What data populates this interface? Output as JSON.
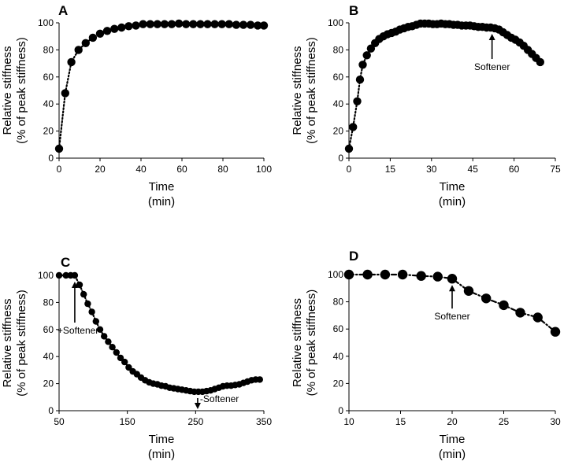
{
  "chart_data": [
    {
      "type": "scatter",
      "panel_label": "A",
      "xlabel": "Time",
      "xunit": "(min)",
      "ylabel": "Relative stiffness",
      "yunit": "(% of peak stiffness)",
      "xlim": [
        0,
        100
      ],
      "ylim": [
        0,
        100
      ],
      "xticks": [
        0,
        20,
        40,
        60,
        80,
        100
      ],
      "yticks": [
        0,
        20,
        40,
        60,
        80,
        100
      ],
      "grid": false,
      "line_style": "dotted",
      "series": [
        {
          "x": [
            0,
            3,
            6,
            9.5,
            13,
            16.5,
            20,
            23.5,
            27,
            30.5,
            34,
            37.5,
            41,
            44.5,
            48,
            51.5,
            55,
            58.5,
            62,
            65.5,
            69,
            72.5,
            76,
            79.5,
            83,
            86.5,
            90,
            93.5,
            97,
            100
          ],
          "y": [
            7,
            48,
            71,
            80,
            85,
            89,
            92,
            94,
            95.5,
            96.5,
            97.5,
            98,
            99,
            99,
            99,
            99,
            99,
            99.5,
            99,
            99,
            99,
            99,
            99,
            99,
            99,
            98.5,
            98.5,
            98.5,
            98,
            98
          ]
        }
      ],
      "annotations": []
    },
    {
      "type": "scatter",
      "panel_label": "B",
      "xlabel": "Time",
      "xunit": "(min)",
      "ylabel": "Relative stiffness",
      "yunit": "(% of peak stiffness)",
      "xlim": [
        0,
        75
      ],
      "ylim": [
        0,
        100
      ],
      "xticks": [
        0,
        15,
        30,
        45,
        60,
        75
      ],
      "yticks": [
        0,
        20,
        40,
        60,
        80,
        100
      ],
      "grid": false,
      "line_style": "dotted",
      "series": [
        {
          "x": [
            0,
            1.5,
            3,
            4,
            5,
            6.5,
            8,
            9.5,
            11,
            12.5,
            14,
            15.5,
            17,
            18.5,
            20,
            21.5,
            23,
            24.5,
            26,
            27.5,
            29,
            30.5,
            32,
            33.5,
            35,
            36.5,
            38,
            39.5,
            41,
            42.5,
            44,
            45.5,
            47,
            48.5,
            50,
            51.5,
            53,
            54.5,
            56,
            57.5,
            59,
            60.5,
            62,
            63.5,
            65,
            66.5,
            68,
            69.5
          ],
          "y": [
            7,
            23,
            42,
            58,
            69,
            76,
            81,
            85,
            88,
            90,
            91.5,
            92.5,
            93.5,
            95,
            96,
            97,
            97.5,
            98.5,
            99.5,
            99.5,
            99.5,
            99,
            99,
            99.5,
            99,
            99,
            98.5,
            98.5,
            98,
            98,
            98,
            97.5,
            97,
            97,
            96.5,
            96.5,
            96,
            95,
            93,
            91,
            89,
            87.5,
            85.5,
            83,
            80,
            77,
            74,
            71
          ]
        }
      ],
      "annotations": [
        {
          "text": "Softener",
          "x": 52,
          "arrow": "up"
        }
      ]
    },
    {
      "type": "scatter",
      "panel_label": "C",
      "xlabel": "Time",
      "xunit": "(min)",
      "ylabel": "Relative stiffness",
      "yunit": "(% of peak stiffness)",
      "xlim": [
        50,
        350
      ],
      "ylim": [
        0,
        100
      ],
      "xticks": [
        50,
        150,
        250,
        350
      ],
      "yticks": [
        0,
        20,
        40,
        60,
        80,
        100
      ],
      "grid": false,
      "line_style": "dotted",
      "series": [
        {
          "x": [
            50,
            60,
            67,
            73,
            80,
            86,
            92,
            98,
            104,
            110,
            116,
            122,
            128,
            134,
            140,
            146,
            152,
            158,
            164,
            170,
            176,
            182,
            188,
            194,
            200,
            206,
            212,
            218,
            224,
            230,
            236,
            242,
            248,
            254,
            260,
            266,
            272,
            278,
            284,
            290,
            296,
            302,
            308,
            314,
            320,
            326,
            332,
            338,
            344
          ],
          "y": [
            100,
            100,
            100,
            100,
            93,
            86,
            79,
            73,
            66,
            60,
            55,
            51,
            47,
            43,
            39,
            36,
            32,
            29,
            27,
            24.5,
            22.5,
            21,
            20,
            19.5,
            18.5,
            18,
            17,
            16.5,
            16,
            15.5,
            15,
            14.5,
            14,
            14,
            14,
            14.5,
            15,
            16,
            17,
            18,
            18.5,
            18.5,
            19,
            19.5,
            20.5,
            21.5,
            22.5,
            23,
            23
          ]
        }
      ],
      "annotations": [
        {
          "text": "+Softener",
          "x": 73,
          "arrow": "up"
        },
        {
          "text": "-Softener",
          "x": 253,
          "arrow": "down"
        }
      ]
    },
    {
      "type": "scatter",
      "panel_label": "D",
      "xlabel": "Time",
      "xunit": "(min)",
      "ylabel": "Relative stiffness",
      "yunit": "(% of peak stiffness)",
      "xlim": [
        10,
        30
      ],
      "ylim": [
        0,
        100
      ],
      "xticks": [
        10,
        15,
        20,
        25,
        30
      ],
      "yticks": [
        0,
        20,
        40,
        60,
        80,
        100
      ],
      "grid": false,
      "line_style": "dash-dot",
      "series": [
        {
          "x": [
            10,
            11.8,
            13.5,
            15.2,
            17,
            18.6,
            20,
            21.6,
            23.3,
            25,
            26.6,
            28.3,
            30
          ],
          "y": [
            100,
            100,
            100,
            100,
            99,
            98.5,
            97,
            88,
            82.5,
            77.5,
            72,
            68.5,
            58
          ]
        }
      ],
      "annotations": [
        {
          "text": "Softener",
          "x": 20,
          "arrow": "up"
        }
      ]
    }
  ]
}
